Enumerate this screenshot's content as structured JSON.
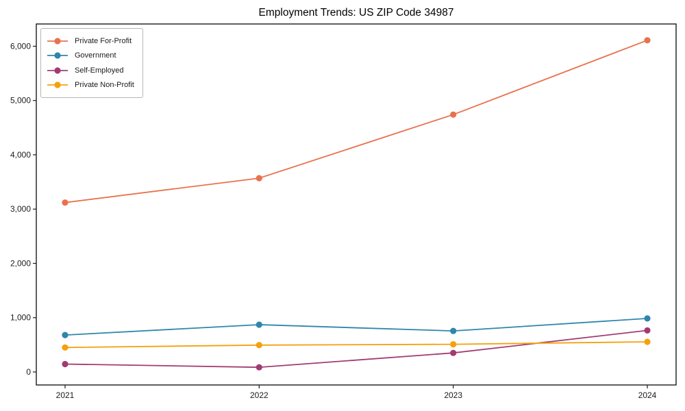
{
  "chart_data": {
    "type": "line",
    "title": "Employment Trends: US ZIP Code 34987",
    "x": [
      "2021",
      "2022",
      "2023",
      "2024"
    ],
    "series": [
      {
        "name": "Private For-Profit",
        "color": "#E8724C",
        "values": [
          3120,
          3570,
          4740,
          6110
        ]
      },
      {
        "name": "Government",
        "color": "#2E86AB",
        "values": [
          680,
          870,
          755,
          985
        ]
      },
      {
        "name": "Self-Employed",
        "color": "#A23B72",
        "values": [
          145,
          85,
          350,
          765
        ]
      },
      {
        "name": "Private Non-Profit",
        "color": "#F5A00C",
        "values": [
          450,
          495,
          510,
          555
        ]
      }
    ],
    "yticks": [
      0,
      1000,
      2000,
      3000,
      4000,
      5000,
      6000
    ],
    "ytick_labels": [
      "0",
      "1,000",
      "2,000",
      "3,000",
      "4,000",
      "5,000",
      "6,000"
    ],
    "ylim": [
      -240,
      6410
    ],
    "xlabel": "",
    "ylabel": "",
    "grid": false,
    "legend_position": "upper left",
    "axis_color": "#1a1a1a"
  }
}
